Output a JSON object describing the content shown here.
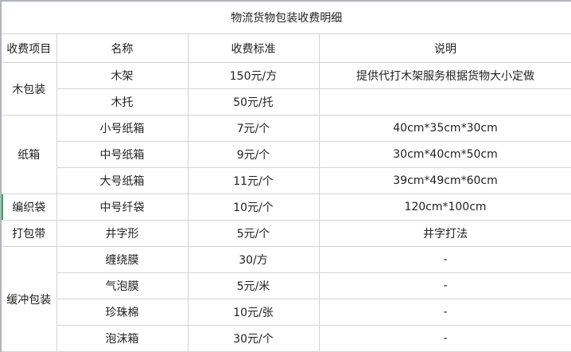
{
  "title": "物流货物包装收费明细",
  "headers": [
    "收费项目",
    "名称",
    "收费标准",
    "说明"
  ],
  "groups": [
    {
      "category": "木包装",
      "rows": [
        {
          "name": "木架",
          "price": "150元/方",
          "note": "提供代打木架服务根据货物大小定做"
        },
        {
          "name": "木托",
          "price": "50元/托",
          "note": ""
        }
      ]
    },
    {
      "category": "纸箱",
      "rows": [
        {
          "name": "小号纸箱",
          "price": "7元/个",
          "note": "40cm*35cm*30cm"
        },
        {
          "name": "中号纸箱",
          "price": "9元/个",
          "note": "30cm*40cm*50cm"
        },
        {
          "name": "大号纸箱",
          "price": "11元/个",
          "note": "39cm*49cm*60cm"
        }
      ]
    },
    {
      "category": "编织袋",
      "rows": [
        {
          "name": "中号纤袋",
          "price": "10元/个",
          "note": "120cm*100cm"
        }
      ]
    },
    {
      "category": "打包带",
      "rows": [
        {
          "name": "井字形",
          "price": "5元/个",
          "note": "井字打法"
        }
      ]
    },
    {
      "category": "缓冲包装",
      "rows": [
        {
          "name": "缠绕膜",
          "price": "30/方",
          "note": "-"
        },
        {
          "name": "气泡膜",
          "price": "5元/米",
          "note": "-"
        },
        {
          "name": "珍珠棉",
          "price": "10元/张",
          "note": "-"
        },
        {
          "name": "泡沫箱",
          "price": "30元/个",
          "note": "-"
        }
      ]
    }
  ],
  "colors": {
    "grid": "#d4d4d8",
    "selected_marker": "#2aa85a"
  }
}
